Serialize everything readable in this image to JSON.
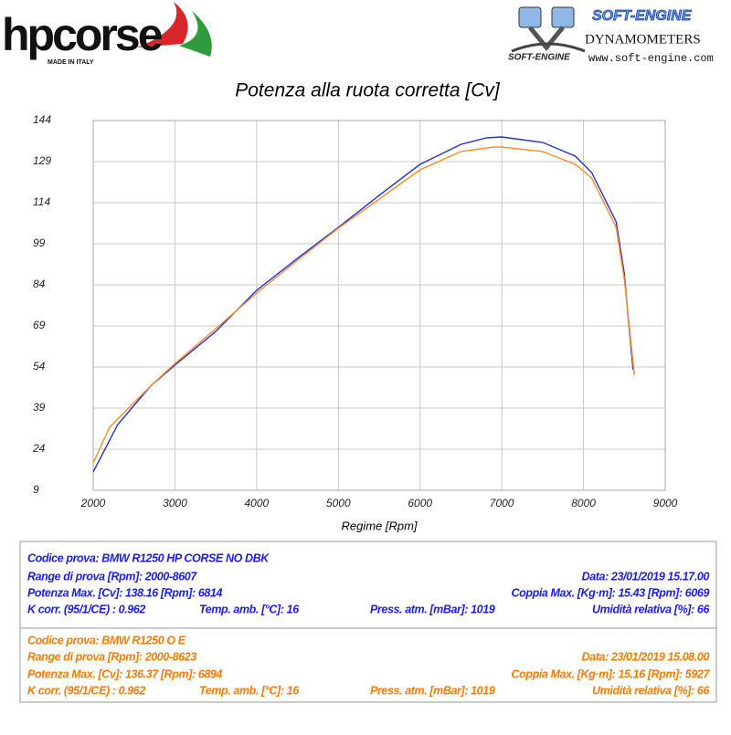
{
  "header": {
    "brand": "hpcorse",
    "brand_sub": "MADE IN ITALY",
    "logo_small": "SOFT-ENGINE",
    "company": "SOFT-ENGINE",
    "company_sub": "DYNAMOMETERS",
    "url": "www.soft-engine.com"
  },
  "chart_data": {
    "type": "line",
    "title": "Potenza alla ruota corretta [Cv]",
    "x_label": "Regime [Rpm]",
    "xlim": [
      2000,
      9000
    ],
    "xticks": [
      2000,
      3000,
      4000,
      5000,
      6000,
      7000,
      8000,
      9000
    ],
    "ylim": [
      9,
      144
    ],
    "yticks": [
      9,
      24,
      39,
      54,
      69,
      84,
      99,
      114,
      129,
      144
    ],
    "grid": true,
    "series": [
      {
        "color": "#1f2fe0",
        "x": [
          2000,
          2300,
          2700,
          3000,
          3500,
          4000,
          4500,
          5000,
          5500,
          6000,
          6500,
          6814,
          7000,
          7500,
          7900,
          8100,
          8400,
          8500,
          8550,
          8607
        ],
        "values": [
          15.7,
          33,
          47,
          54.7,
          67,
          82,
          93.7,
          105,
          116.7,
          128,
          135.3,
          137.7,
          138,
          136,
          131,
          125,
          107,
          88,
          71,
          53
        ]
      },
      {
        "color": "#ff8a1a",
        "x": [
          2000,
          2200,
          2700,
          3000,
          3500,
          4000,
          4500,
          5000,
          5500,
          6000,
          6500,
          6894,
          7000,
          7500,
          7900,
          8100,
          8400,
          8500,
          8623
        ],
        "values": [
          19,
          32,
          47,
          55.3,
          68,
          81,
          93,
          104.7,
          115.3,
          126,
          132.7,
          134.3,
          134.3,
          132.7,
          128,
          123,
          105,
          86,
          51
        ]
      }
    ]
  },
  "tests": [
    {
      "code": "Codice prova: BMW R1250 HP CORSE NO DBK",
      "range": "Range di prova [Rpm]: 2000-8607",
      "date": "Data: 23/01/2019   15.17.00",
      "power": "Potenza Max. [Cv]: 138.16  [Rpm]: 6814",
      "torque": "Coppia Max. [Kg·m]: 15.43  [Rpm]: 6069",
      "kcorr": "K corr. (95/1/CE) : 0.962",
      "temp": "Temp. amb. [°C]: 16",
      "press": "Press. atm. [mBar]: 1019",
      "humidity": "Umidità relativa [%]: 66"
    },
    {
      "code": "Codice prova: BMW R1250 O E",
      "range": "Range di prova [Rpm]: 2000-8623",
      "date": "Data: 23/01/2019   15.08.00",
      "power": "Potenza Max. [Cv]: 136.37  [Rpm]: 6894",
      "torque": "Coppia Max. [Kg·m]: 15.16  [Rpm]: 5927",
      "kcorr": "K corr. (95/1/CE) : 0.962",
      "temp": "Temp. amb. [°C]: 16",
      "press": "Press. atm. [mBar]: 1019",
      "humidity": "Umidità relativa [%]: 66"
    }
  ]
}
